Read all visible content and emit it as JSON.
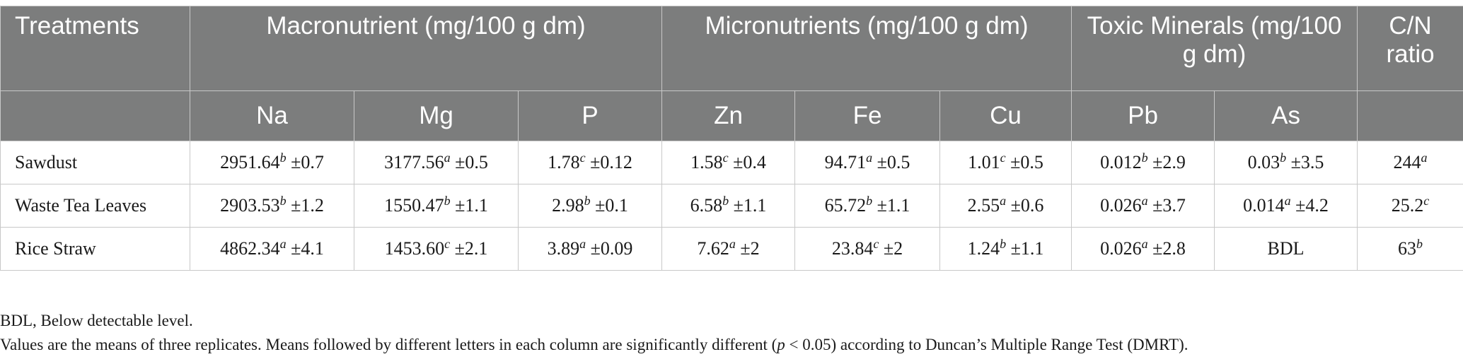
{
  "table": {
    "header_groups": [
      {
        "label": "Treatments",
        "colspan": 1
      },
      {
        "label": "Macronutrient (mg/100 g dm)",
        "colspan": 3
      },
      {
        "label": "Micronutrients (mg/100 g dm)",
        "colspan": 3
      },
      {
        "label": "Toxic Minerals (mg/100 g dm)",
        "colspan": 2
      },
      {
        "label": "C/N ratio",
        "colspan": 1
      }
    ],
    "subheaders": [
      "Na",
      "Mg",
      "P",
      "Zn",
      "Fe",
      "Cu",
      "Pb",
      "As"
    ],
    "rows": [
      {
        "treatment": "Sawdust",
        "cells": [
          {
            "value": "2951.64",
            "sup": "b",
            "sd": " ±0.7"
          },
          {
            "value": "3177.56",
            "sup": "a",
            "sd": " ±0.5"
          },
          {
            "value": "1.78",
            "sup": "c",
            "sd": " ±0.12"
          },
          {
            "value": "1.58",
            "sup": "c",
            "sd": " ±0.4"
          },
          {
            "value": "94.71",
            "sup": "a",
            "sd": " ±0.5"
          },
          {
            "value": "1.01",
            "sup": "c",
            "sd": " ±0.5"
          },
          {
            "value": "0.012",
            "sup": "b",
            "sd": " ±2.9"
          },
          {
            "value": "0.03",
            "sup": "b",
            "sd": " ±3.5"
          },
          {
            "value": "244",
            "sup": "a",
            "sd": ""
          }
        ]
      },
      {
        "treatment": "Waste Tea Leaves",
        "cells": [
          {
            "value": "2903.53",
            "sup": "b",
            "sd": " ±1.2"
          },
          {
            "value": "1550.47",
            "sup": "b",
            "sd": " ±1.1"
          },
          {
            "value": "2.98",
            "sup": "b",
            "sd": " ±0.1"
          },
          {
            "value": "6.58",
            "sup": "b",
            "sd": " ±1.1"
          },
          {
            "value": "65.72",
            "sup": "b",
            "sd": " ±1.1"
          },
          {
            "value": "2.55",
            "sup": "a",
            "sd": " ±0.6"
          },
          {
            "value": "0.026",
            "sup": "a",
            "sd": " ±3.7"
          },
          {
            "value": "0.014",
            "sup": "a",
            "sd": " ±4.2"
          },
          {
            "value": "25.2",
            "sup": "c",
            "sd": ""
          }
        ]
      },
      {
        "treatment": "Rice Straw",
        "cells": [
          {
            "value": "4862.34",
            "sup": "a",
            "sd": " ±4.1"
          },
          {
            "value": "1453.60",
            "sup": "c",
            "sd": " ±2.1"
          },
          {
            "value": "3.89",
            "sup": "a",
            "sd": " ±0.09"
          },
          {
            "value": "7.62",
            "sup": "a",
            "sd": " ±2"
          },
          {
            "value": "23.84",
            "sup": "c",
            "sd": " ±2"
          },
          {
            "value": "1.24",
            "sup": "b",
            "sd": " ±1.1"
          },
          {
            "value": "0.026",
            "sup": "a",
            "sd": " ±2.8"
          },
          {
            "value": "BDL",
            "sup": "",
            "sd": ""
          },
          {
            "value": "63",
            "sup": "b",
            "sd": ""
          }
        ]
      }
    ]
  },
  "notes": {
    "bdl": "BDL, Below detectable level.",
    "line2_before": "Values are the means of three replicates. Means followed by different letters in each column are significantly different (",
    "line2_p": "p",
    "line2_after": " < 0.05) according to Duncan’s Multiple Range Test (DMRT).",
    "colors": {
      "header_bg": "#7c7d7d",
      "header_text": "#ffffff",
      "grid": "#c8c8c8"
    }
  }
}
